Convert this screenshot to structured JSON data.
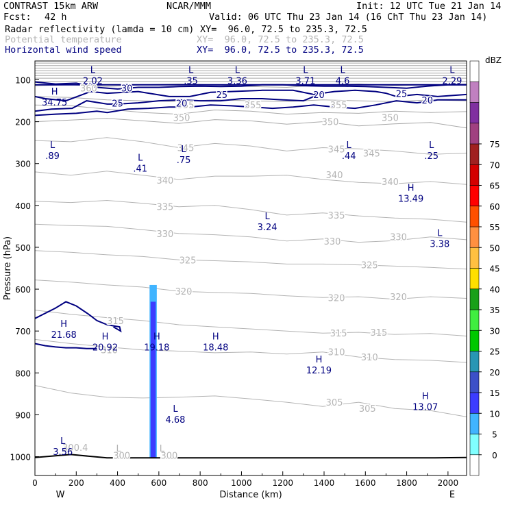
{
  "header": {
    "model": "CONTRAST 15km ARW",
    "center": "NCAR/MMM",
    "init": "Init: 12 UTC Tue 21 Jan 14",
    "fcst_label": "Fcst:",
    "fcst_value": "42 h",
    "valid": "Valid: 06 UTC Thu 23 Jan 14 (16 ChT Thu 23 Jan 14)"
  },
  "fields": [
    {
      "label": "Radar reflectivity (lamda = 10 cm)",
      "xy": "XY=  96.0, 72.5 to 235.3, 72.5",
      "color": "#000000"
    },
    {
      "label": "Potential temperature",
      "xy": "XY=  96.0, 72.5 to 235.3, 72.5",
      "color": "#b4b4b4"
    },
    {
      "label": "Horizontal wind speed",
      "xy": "XY=  96.0, 72.5 to 235.3, 72.5",
      "color": "#000080"
    }
  ],
  "chart_data": {
    "type": "cross-section contour",
    "xlabel": "Distance (km)",
    "ylabel": "Pressure (hPa)",
    "xlim": [
      0,
      2090
    ],
    "ylim": [
      1045,
      55
    ],
    "x_ticks": [
      0,
      200,
      400,
      600,
      800,
      1000,
      1200,
      1400,
      1600,
      1800,
      2000
    ],
    "y_ticks": [
      100,
      200,
      300,
      400,
      500,
      600,
      700,
      800,
      900,
      1000
    ],
    "west_label": "W",
    "east_label": "E",
    "colorbar": {
      "unit": "dBZ",
      "levels": [
        0,
        5,
        10,
        15,
        20,
        25,
        30,
        35,
        40,
        45,
        50,
        55,
        60,
        65,
        70,
        75
      ],
      "colors": [
        "#ffffff",
        "#80ffff",
        "#40b4ff",
        "#3c3cff",
        "#3c50c8",
        "#2896b4",
        "#00c800",
        "#40ee40",
        "#18a018",
        "#ffe000",
        "#ffc040",
        "#ff9040",
        "#ff5000",
        "#ff0000",
        "#d40000",
        "#a02020",
        "#a04080",
        "#8030a0",
        "#c080c0",
        "#ffffff"
      ]
    },
    "theta_labels": [
      {
        "text": "360",
        "x": 260,
        "p": 120
      },
      {
        "text": "355",
        "x": 730,
        "p": 160
      },
      {
        "text": "355",
        "x": 1055,
        "p": 160
      },
      {
        "text": "355",
        "x": 1470,
        "p": 160
      },
      {
        "text": "350",
        "x": 710,
        "p": 190
      },
      {
        "text": "350",
        "x": 1430,
        "p": 200
      },
      {
        "text": "350",
        "x": 1720,
        "p": 190
      },
      {
        "text": "345",
        "x": 730,
        "p": 262
      },
      {
        "text": "345",
        "x": 1460,
        "p": 265
      },
      {
        "text": "345",
        "x": 1630,
        "p": 275
      },
      {
        "text": "340",
        "x": 630,
        "p": 340
      },
      {
        "text": "340",
        "x": 1450,
        "p": 327
      },
      {
        "text": "340",
        "x": 1720,
        "p": 343
      },
      {
        "text": "335",
        "x": 630,
        "p": 403
      },
      {
        "text": "335",
        "x": 1460,
        "p": 423
      },
      {
        "text": "330",
        "x": 630,
        "p": 467
      },
      {
        "text": "330",
        "x": 1440,
        "p": 485
      },
      {
        "text": "330",
        "x": 1760,
        "p": 475
      },
      {
        "text": "325",
        "x": 740,
        "p": 530
      },
      {
        "text": "325",
        "x": 1620,
        "p": 542
      },
      {
        "text": "320",
        "x": 720,
        "p": 605
      },
      {
        "text": "320",
        "x": 1460,
        "p": 620
      },
      {
        "text": "320",
        "x": 1760,
        "p": 618
      },
      {
        "text": "315",
        "x": 390,
        "p": 675
      },
      {
        "text": "315",
        "x": 1470,
        "p": 705
      },
      {
        "text": "315",
        "x": 1665,
        "p": 703
      },
      {
        "text": "310",
        "x": 360,
        "p": 745
      },
      {
        "text": "310",
        "x": 1460,
        "p": 750
      },
      {
        "text": "310",
        "x": 1620,
        "p": 762
      },
      {
        "text": "305",
        "x": 1450,
        "p": 870
      },
      {
        "text": "305",
        "x": 1610,
        "p": 885
      },
      {
        "text": "300.4",
        "x": 195,
        "p": 978
      },
      {
        "text": "300",
        "x": 420,
        "p": 997
      },
      {
        "text": "300",
        "x": 650,
        "p": 997
      }
    ],
    "wind_labels": [
      {
        "text": "30",
        "x": 445,
        "p": 120
      },
      {
        "text": "25",
        "x": 905,
        "p": 135
      },
      {
        "text": "20",
        "x": 1375,
        "p": 135
      },
      {
        "text": "25",
        "x": 1775,
        "p": 133
      },
      {
        "text": "20",
        "x": 1900,
        "p": 148
      },
      {
        "text": "25",
        "x": 400,
        "p": 156
      },
      {
        "text": "20",
        "x": 710,
        "p": 156
      }
    ],
    "extrema": [
      {
        "type": "L",
        "value": "2.02",
        "x": 280,
        "p": 74
      },
      {
        "type": "L",
        "value": ".35",
        "x": 755,
        "p": 74
      },
      {
        "type": "L",
        "value": "3.36",
        "x": 980,
        "p": 74
      },
      {
        "type": "L",
        "value": "3.71",
        "x": 1310,
        "p": 74
      },
      {
        "type": "L",
        "value": "4.6",
        "x": 1490,
        "p": 74
      },
      {
        "type": "L",
        "value": "2.29",
        "x": 2020,
        "p": 74
      },
      {
        "type": "H",
        "value": "34.75",
        "x": 95,
        "p": 125
      },
      {
        "type": "L",
        "value": ".89",
        "x": 85,
        "p": 253
      },
      {
        "type": "L",
        "value": ".75",
        "x": 720,
        "p": 263
      },
      {
        "type": "L",
        "value": ".41",
        "x": 510,
        "p": 283
      },
      {
        "type": "L",
        "value": ".44",
        "x": 1520,
        "p": 253
      },
      {
        "type": "L",
        "value": ".25",
        "x": 1920,
        "p": 253
      },
      {
        "type": "H",
        "value": "13.49",
        "x": 1820,
        "p": 355
      },
      {
        "type": "L",
        "value": "3.24",
        "x": 1125,
        "p": 423
      },
      {
        "type": "L",
        "value": "3.38",
        "x": 1960,
        "p": 463
      },
      {
        "type": "H",
        "value": "21.68",
        "x": 140,
        "p": 680
      },
      {
        "type": "H",
        "value": "20.92",
        "x": 340,
        "p": 710
      },
      {
        "type": "H",
        "value": "19.18",
        "x": 590,
        "p": 710
      },
      {
        "type": "H",
        "value": "18.48",
        "x": 875,
        "p": 710
      },
      {
        "type": "H",
        "value": "12.19",
        "x": 1375,
        "p": 765
      },
      {
        "type": "H",
        "value": "13.07",
        "x": 1890,
        "p": 853
      },
      {
        "type": "L",
        "value": "4.68",
        "x": 680,
        "p": 883
      },
      {
        "type": "L",
        "value": "3.56",
        "x": 135,
        "p": 960
      },
      {
        "type": "L",
        "value": "",
        "x": 405,
        "p": 978
      },
      {
        "type": "L",
        "value": "",
        "x": 615,
        "p": 978
      }
    ],
    "reflectivity_columns": [
      {
        "x0": 555,
        "x1": 590,
        "p_top": 590,
        "p_bottom": 1003,
        "dbz": 5
      },
      {
        "x0": 560,
        "x1": 585,
        "p_top": 630,
        "p_bottom": 1003,
        "dbz": 10
      }
    ],
    "theta_isentropes": [
      {
        "p": [
          245,
          248,
          238,
          248,
          262,
          252,
          258,
          270,
          262,
          265,
          270,
          278,
          275
        ]
      },
      {
        "p": [
          320,
          328,
          318,
          328,
          338,
          330,
          330,
          328,
          338,
          345,
          348,
          343,
          350
        ]
      },
      {
        "p": [
          390,
          393,
          388,
          395,
          403,
          400,
          410,
          423,
          418,
          425,
          430,
          433,
          440
        ]
      },
      {
        "p": [
          445,
          448,
          450,
          458,
          467,
          470,
          475,
          485,
          480,
          488,
          484,
          475,
          482
        ]
      },
      {
        "p": [
          508,
          512,
          518,
          522,
          530,
          532,
          535,
          540,
          540,
          542,
          545,
          548,
          552
        ]
      },
      {
        "p": [
          578,
          583,
          590,
          595,
          605,
          608,
          610,
          616,
          620,
          618,
          624,
          618,
          622
        ]
      },
      {
        "p": [
          650,
          660,
          668,
          675,
          685,
          690,
          695,
          700,
          705,
          703,
          708,
          706,
          712
        ]
      },
      {
        "p": [
          720,
          730,
          738,
          745,
          748,
          752,
          750,
          755,
          750,
          762,
          768,
          770,
          775
        ]
      },
      {
        "p": [
          830,
          848,
          858,
          860,
          858,
          855,
          862,
          870,
          880,
          870,
          885,
          890,
          905
        ]
      }
    ],
    "top_isentropes": [
      {
        "p": [
          60,
          60,
          60,
          60,
          60,
          60,
          60,
          60,
          60,
          60,
          60,
          60,
          60
        ]
      },
      {
        "p": [
          66,
          66,
          66,
          66,
          66,
          66,
          66,
          66,
          66,
          66,
          66,
          66,
          66
        ]
      },
      {
        "p": [
          72,
          72,
          72,
          72,
          72,
          72,
          72,
          72,
          72,
          72,
          72,
          72,
          72
        ]
      },
      {
        "p": [
          78,
          78,
          78,
          78,
          78,
          78,
          78,
          78,
          78,
          78,
          78,
          78,
          78
        ]
      },
      {
        "p": [
          84,
          84,
          84,
          84,
          84,
          84,
          84,
          84,
          84,
          84,
          84,
          84,
          84
        ]
      },
      {
        "p": [
          90,
          90,
          90,
          90,
          90,
          90,
          90,
          90,
          90,
          90,
          90,
          90,
          90
        ]
      },
      {
        "p": [
          96,
          96,
          96,
          96,
          96,
          96,
          96,
          96,
          96,
          96,
          96,
          96,
          96
        ]
      },
      {
        "p": [
          104,
          104,
          104,
          104,
          104,
          104,
          104,
          104,
          104,
          104,
          104,
          104,
          104
        ]
      },
      {
        "p": [
          114,
          112,
          116,
          112,
          110,
          112,
          116,
          118,
          112,
          110,
          114,
          112,
          110
        ]
      },
      {
        "p": [
          140,
          142,
          148,
          150,
          152,
          148,
          150,
          152,
          148,
          150,
          152,
          148,
          150
        ]
      },
      {
        "p": [
          160,
          162,
          170,
          178,
          182,
          172,
          175,
          182,
          178,
          180,
          175,
          178,
          176
        ]
      },
      {
        "p": [
          200,
          196,
          192,
          198,
          204,
          195,
          198,
          206,
          200,
          210,
          205,
          202,
          215
        ]
      }
    ],
    "wind_contours": [
      {
        "x": [
          0,
          150,
          300,
          450,
          650,
          850,
          1050,
          1250,
          1450,
          1650,
          1850,
          2000,
          2090
        ],
        "p": [
          112,
          112,
          112,
          112,
          112,
          112,
          112,
          112,
          112,
          112,
          112,
          112,
          112
        ]
      },
      {
        "x": [
          0,
          100,
          200,
          300,
          400,
          500,
          600,
          700,
          800,
          900,
          1000,
          1100,
          1200,
          1300,
          1400,
          1500,
          1600,
          1700,
          1800,
          1900,
          2000,
          2090
        ],
        "p": [
          105,
          110,
          108,
          118,
          122,
          118,
          118,
          116,
          115,
          116,
          115,
          112,
          112,
          114,
          115,
          115,
          116,
          118,
          120,
          115,
          112,
          112
        ]
      },
      {
        "x": [
          0,
          50,
          150,
          270,
          350,
          500,
          650,
          750,
          850,
          950,
          1100,
          1250,
          1350,
          1450,
          1550,
          1650,
          1700,
          1750,
          1850,
          1950,
          2090
        ],
        "p": [
          140,
          145,
          150,
          128,
          132,
          128,
          140,
          140,
          130,
          128,
          125,
          125,
          135,
          128,
          125,
          128,
          132,
          140,
          135,
          140,
          135
        ]
      },
      {
        "x": [
          0,
          80,
          180,
          250,
          350,
          400,
          500,
          600,
          700,
          800,
          900,
          1000,
          1100,
          1200,
          1300,
          1350
        ],
        "p": [
          175,
          170,
          168,
          150,
          158,
          158,
          155,
          150,
          148,
          150,
          150,
          145,
          145,
          148,
          150,
          140
        ]
      },
      {
        "x": [
          0,
          100,
          200,
          300,
          350,
          450,
          550,
          650,
          750,
          850,
          950,
          1050,
          1150,
          1250,
          1350,
          1450,
          1550,
          1650,
          1750,
          1850,
          1950,
          2090
        ],
        "p": [
          185,
          182,
          180,
          175,
          178,
          170,
          168,
          165,
          165,
          160,
          162,
          165,
          168,
          165,
          160,
          165,
          168,
          160,
          150,
          155,
          148,
          148
        ]
      }
    ],
    "high_contours": [
      {
        "x": [
          0,
          100,
          150,
          200,
          260,
          300,
          350,
          410,
          415,
          380
        ],
        "p": [
          670,
          645,
          630,
          640,
          660,
          675,
          685,
          690,
          700,
          690
        ]
      },
      {
        "x": [
          0,
          50,
          100,
          150,
          200,
          250,
          300
        ],
        "p": [
          730,
          735,
          738,
          740,
          740,
          742,
          742
        ]
      }
    ],
    "surface_pressure": [
      1002,
      995,
      1003,
      1003,
      1003,
      1003,
      1003,
      1003,
      1003,
      1003,
      1003,
      1003,
      1002
    ]
  }
}
